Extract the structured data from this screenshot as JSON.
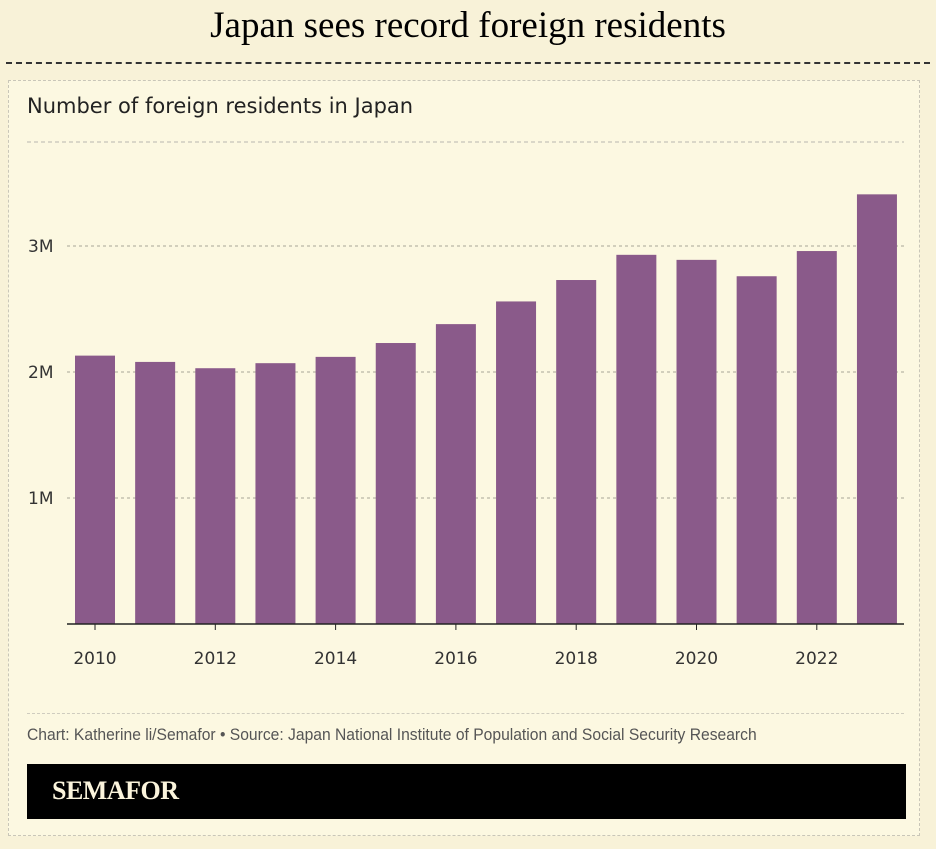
{
  "headline": "Japan sees record foreign residents",
  "chart_data": {
    "type": "bar",
    "title": "Number of foreign residents in Japan",
    "xlabel": "",
    "ylabel": "",
    "categories": [
      "2010",
      "2011",
      "2012",
      "2013",
      "2014",
      "2015",
      "2016",
      "2017",
      "2018",
      "2019",
      "2020",
      "2021",
      "2022",
      "2023"
    ],
    "values": [
      2.13,
      2.08,
      2.03,
      2.07,
      2.12,
      2.23,
      2.38,
      2.56,
      2.73,
      2.93,
      2.89,
      2.76,
      2.96,
      3.41
    ],
    "unit": "millions",
    "ylim": [
      0,
      3.8
    ],
    "yticks": [
      {
        "value": 1,
        "label": "1M"
      },
      {
        "value": 2,
        "label": "2M"
      },
      {
        "value": 3,
        "label": "3M"
      }
    ],
    "xtick_labels": [
      "2010",
      "2012",
      "2014",
      "2016",
      "2018",
      "2020",
      "2022"
    ],
    "grid": true,
    "bar_color": "#8a5a8a"
  },
  "credit": "Chart: Katherine li/Semafor • Source: Japan National Institute of Population and Social Security Research",
  "brand": "SEMAFOR"
}
